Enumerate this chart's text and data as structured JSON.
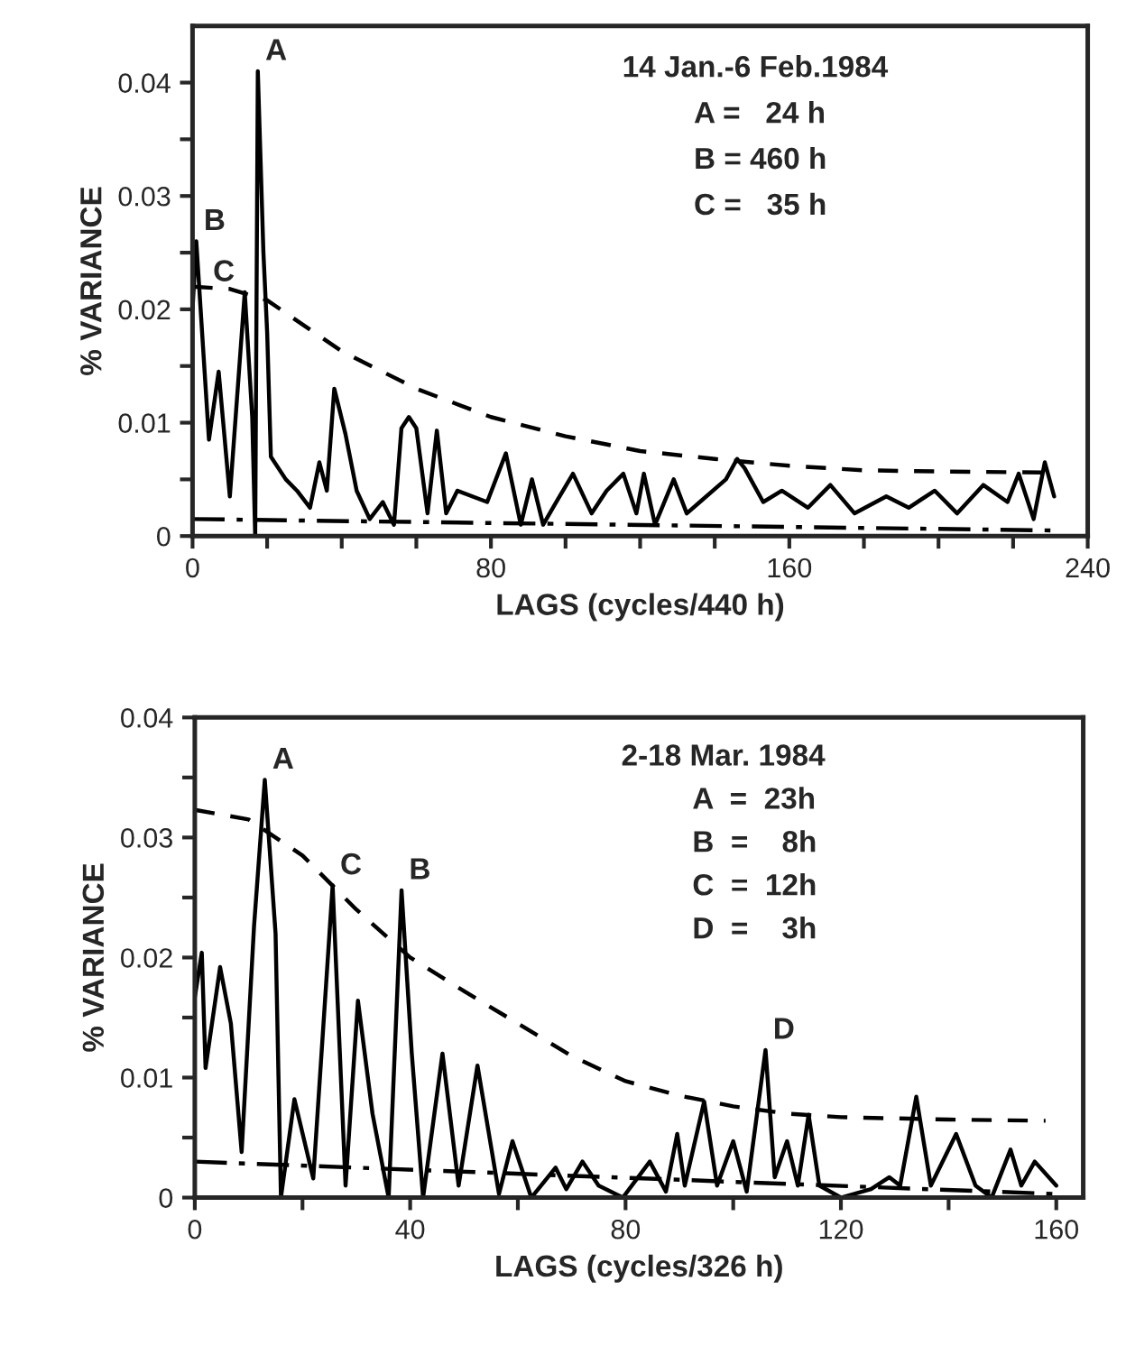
{
  "chart_data": [
    {
      "type": "line",
      "xlabel": "LAGS (cycles/440 h)",
      "ylabel": "% VARIANCE",
      "xlim": [
        0,
        240
      ],
      "ylim": [
        0,
        0.045
      ],
      "grid": false,
      "xticks": [
        0,
        {
          "value": 20,
          "label": null
        },
        {
          "value": 40,
          "label": null
        },
        {
          "value": 60,
          "label": null
        },
        80,
        {
          "value": 100,
          "label": null
        },
        {
          "value": 120,
          "label": null
        },
        {
          "value": 140,
          "label": null
        },
        160,
        {
          "value": 180,
          "label": null
        },
        {
          "value": 200,
          "label": null
        },
        {
          "value": 220,
          "label": null
        },
        240
      ],
      "yticks": [
        0,
        {
          "value": 0.005,
          "label": null
        },
        0.01,
        {
          "value": 0.015,
          "label": null
        },
        0.02,
        {
          "value": 0.025,
          "label": null
        },
        0.03,
        {
          "value": 0.035,
          "label": null
        },
        0.04
      ],
      "series": [
        {
          "color": "#000000",
          "line_style": "solid",
          "x": [
            0,
            1,
            4.4,
            7,
            10,
            14,
            16,
            16.8,
            17.5,
            19,
            20,
            21,
            25,
            28,
            31.5,
            34,
            36,
            38,
            41,
            44,
            47.5,
            51,
            54,
            56,
            58,
            60,
            63,
            65.5,
            68,
            71,
            79,
            84,
            88,
            91,
            94,
            97.5,
            102,
            107,
            111,
            115.5,
            119,
            121,
            124,
            129,
            132.5,
            136,
            143,
            146,
            148,
            153,
            158,
            165,
            171,
            177.5,
            186,
            192,
            199,
            205,
            212,
            218.5,
            221.5,
            225.5,
            228.5,
            231
          ],
          "values": [
            0.02,
            0.026,
            0.0085,
            0.0145,
            0.0035,
            0.0215,
            0.0105,
            0,
            0.041,
            0.025,
            0.018,
            0.007,
            0.005,
            0.004,
            0.0025,
            0.0065,
            0.004,
            0.013,
            0.009,
            0.004,
            0.0015,
            0.003,
            0.001,
            0.0095,
            0.0105,
            0.0095,
            0.002,
            0.0093,
            0.002,
            0.004,
            0.003,
            0.0073,
            0.001,
            0.005,
            0.001,
            0.003,
            0.0055,
            0.002,
            0.004,
            0.0055,
            0.002,
            0.0055,
            0.001,
            0.005,
            0.002,
            0.003,
            0.005,
            0.0068,
            0.006,
            0.003,
            0.004,
            0.0025,
            0.0045,
            0.002,
            0.0035,
            0.0025,
            0.004,
            0.002,
            0.0045,
            0.003,
            0.0055,
            0.0015,
            0.0065,
            0.0035
          ]
        },
        {
          "color": "#000000",
          "line_style": "dashed",
          "x": [
            0,
            10,
            20,
            40,
            60,
            80,
            100,
            120,
            140,
            160,
            180,
            200,
            230
          ],
          "values": [
            0.022,
            0.0218,
            0.0208,
            0.0163,
            0.013,
            0.0105,
            0.0088,
            0.0075,
            0.0068,
            0.0062,
            0.0058,
            0.0057,
            0.0056
          ]
        },
        {
          "color": "#000000",
          "line_style": "dashdot",
          "x": [
            0,
            230
          ],
          "values": [
            0.0015,
            0.0005
          ]
        }
      ],
      "annotations": [
        "14 Jan.-6 Feb.1984",
        "A =   24 h",
        "B = 460 h",
        "C =   35 h",
        {
          "text": "A",
          "x": 17.5,
          "y": 0.041
        },
        {
          "text": "B",
          "x": 1,
          "y": 0.026
        },
        {
          "text": "C",
          "x": 14,
          "y": 0.0215
        }
      ]
    },
    {
      "type": "line",
      "xlabel": "LAGS (cycles/326 h)",
      "ylabel": "% VARIANCE",
      "xlim": [
        0,
        165
      ],
      "ylim": [
        0,
        0.04
      ],
      "xticks": [
        0,
        {
          "value": 20,
          "label": null
        },
        40,
        {
          "value": 60,
          "label": null
        },
        80,
        {
          "value": 100,
          "label": null
        },
        120,
        {
          "value": 140,
          "label": null
        },
        160
      ],
      "yticks": [
        0,
        {
          "value": 0.005,
          "label": null
        },
        0.01,
        {
          "value": 0.015,
          "label": null
        },
        0.02,
        {
          "value": 0.025,
          "label": null
        },
        0.03,
        {
          "value": 0.035,
          "label": null
        },
        0.04
      ],
      "grid": false,
      "series": [
        {
          "color": "#000000",
          "line_style": "solid",
          "x": [
            0,
            1.3,
            2,
            4.7,
            6.7,
            8.7,
            11,
            13,
            15,
            16,
            18.5,
            22,
            25.6,
            28,
            30.3,
            33,
            36,
            38.4,
            40.3,
            42.4,
            46,
            49,
            52.5,
            56.5,
            59,
            62.5,
            67,
            69,
            72,
            75,
            79.5,
            84.5,
            87.5,
            89.6,
            91,
            94.6,
            97,
            100,
            102.5,
            106,
            107.7,
            110,
            112,
            114,
            116,
            120,
            125.6,
            129,
            131,
            134,
            136.7,
            141.4,
            145,
            148,
            151.5,
            153.5,
            156,
            160
          ],
          "values": [
            0.0167,
            0.0204,
            0.0108,
            0.0192,
            0.0145,
            0.0038,
            0.0226,
            0.0348,
            0.022,
            0,
            0.0082,
            0.0016,
            0.026,
            0.001,
            0.0164,
            0.007,
            0,
            0.0256,
            0.012,
            0,
            0.012,
            0.001,
            0.011,
            0.0003,
            0.0047,
            0,
            0.0025,
            0.0007,
            0.003,
            0.001,
            0,
            0.003,
            0.0005,
            0.0053,
            0.001,
            0.008,
            0.001,
            0.0047,
            0.0005,
            0.0123,
            0.0017,
            0.0047,
            0.001,
            0.0069,
            0.001,
            0,
            0.0007,
            0.0017,
            0.001,
            0.0084,
            0.001,
            0.0053,
            0.001,
            0,
            0.004,
            0.001,
            0.003,
            0.001
          ]
        },
        {
          "color": "#000000",
          "line_style": "dashed",
          "x": [
            0,
            10,
            20,
            30,
            40,
            50,
            60,
            70,
            80,
            90,
            100,
            110,
            120,
            140,
            158
          ],
          "values": [
            0.0323,
            0.0315,
            0.0285,
            0.024,
            0.02,
            0.0172,
            0.0145,
            0.0118,
            0.0097,
            0.0085,
            0.0076,
            0.007,
            0.0067,
            0.0065,
            0.0064
          ]
        },
        {
          "color": "#000000",
          "line_style": "dashdot",
          "x": [
            0,
            160
          ],
          "values": [
            0.003,
            0.0003
          ]
        }
      ],
      "annotations": [
        "2-18 Mar. 1984",
        "A  =  23h",
        "B  =    8h",
        "C  =  12h",
        "D  =    3h",
        {
          "text": "A",
          "x": 13,
          "y": 0.0348
        },
        {
          "text": "C",
          "x": 25.6,
          "y": 0.026
        },
        {
          "text": "B",
          "x": 38.4,
          "y": 0.0256
        },
        {
          "text": "D",
          "x": 106,
          "y": 0.0123
        }
      ]
    }
  ]
}
